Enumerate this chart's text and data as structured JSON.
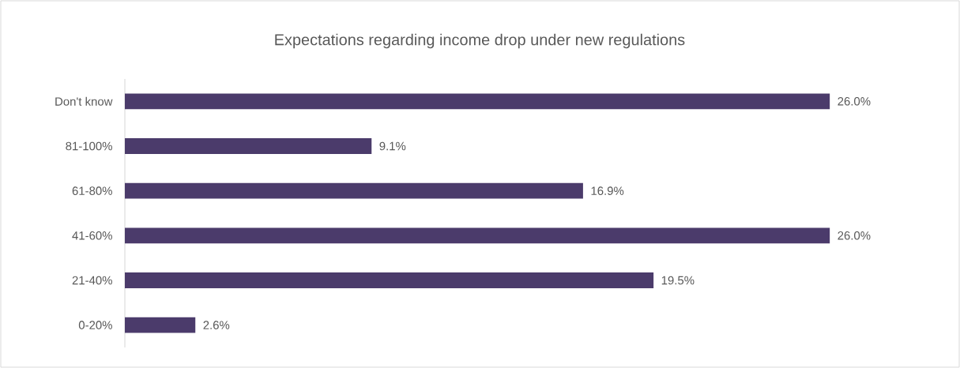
{
  "chart_data": {
    "type": "bar",
    "orientation": "horizontal",
    "title": "Expectations regarding income drop under new regulations",
    "categories": [
      "Don't know",
      "81-100%",
      "61-80%",
      "41-60%",
      "21-40%",
      "0-20%"
    ],
    "values": [
      26.0,
      9.1,
      16.9,
      26.0,
      19.5,
      2.6
    ],
    "value_labels": [
      "26.0%",
      "9.1%",
      "16.9%",
      "26.0%",
      "19.5%",
      "2.6%"
    ],
    "color": "#4b3b6b"
  }
}
